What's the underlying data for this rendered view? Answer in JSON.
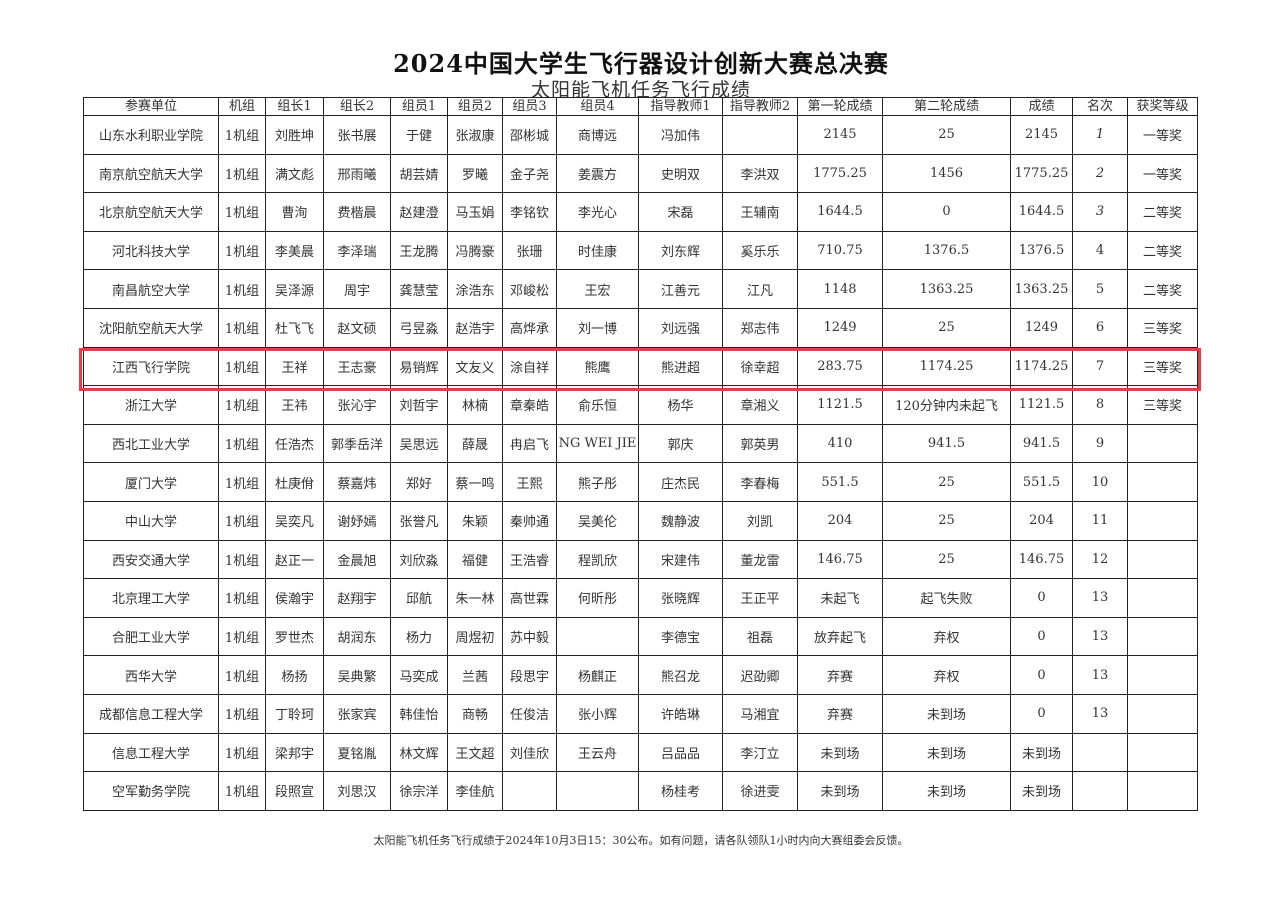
{
  "title": "2024中国大学生飞行器设计创新大赛总决赛",
  "subtitle": "太阳能飞机任务飞行成绩",
  "highlight_color": "#e0404a",
  "highlighted_team": "江西飞行学院",
  "columns": [
    "参赛单位",
    "机组",
    "组长1",
    "组长2",
    "组员1",
    "组员2",
    "组员3",
    "组员4",
    "指导教师1",
    "指导教师2",
    "第一轮成绩",
    "第二轮成绩",
    "成绩",
    "名次",
    "获奖等级"
  ],
  "rows": [
    [
      "山东水利职业学院",
      "1机组",
      "刘胜坤",
      "张书展",
      "于健",
      "张淑康",
      "邵彬城",
      "商博远",
      "冯加伟",
      "",
      "2145",
      "25",
      "2145",
      "1",
      "一等奖"
    ],
    [
      "南京航空航天大学",
      "1机组",
      "满文彪",
      "邢雨曦",
      "胡芸婧",
      "罗曦",
      "金子尧",
      "姜震方",
      "史明双",
      "李洪双",
      "1775.25",
      "1456",
      "1775.25",
      "2",
      "一等奖"
    ],
    [
      "北京航空航天大学",
      "1机组",
      "曹洵",
      "费楷晨",
      "赵建澄",
      "马玉娟",
      "李铭钦",
      "李光心",
      "宋磊",
      "王辅南",
      "1644.5",
      "0",
      "1644.5",
      "3",
      "二等奖"
    ],
    [
      "河北科技大学",
      "1机组",
      "李美晨",
      "李泽瑞",
      "王龙腾",
      "冯腾豪",
      "张珊",
      "时佳康",
      "刘东辉",
      "奚乐乐",
      "710.75",
      "1376.5",
      "1376.5",
      "4",
      "二等奖"
    ],
    [
      "南昌航空大学",
      "1机组",
      "吴泽源",
      "周宇",
      "龚慧莹",
      "涂浩东",
      "邓峻松",
      "王宏",
      "江善元",
      "江凡",
      "1148",
      "1363.25",
      "1363.25",
      "5",
      "二等奖"
    ],
    [
      "沈阳航空航天大学",
      "1机组",
      "杜飞飞",
      "赵文硕",
      "弓昱淼",
      "赵浩宇",
      "高烨承",
      "刘一博",
      "刘远强",
      "郑志伟",
      "1249",
      "25",
      "1249",
      "6",
      "三等奖"
    ],
    [
      "江西飞行学院",
      "1机组",
      "王祥",
      "王志豪",
      "易销辉",
      "文友义",
      "涂自祥",
      "熊鹰",
      "熊进超",
      "徐幸超",
      "283.75",
      "1174.25",
      "1174.25",
      "7",
      "三等奖"
    ],
    [
      "浙江大学",
      "1机组",
      "王祎",
      "张沁宇",
      "刘哲宇",
      "林楠",
      "章秦皓",
      "俞乐恒",
      "杨华",
      "章湘义",
      "1121.5",
      "120分钟内未起飞",
      "1121.5",
      "8",
      "三等奖"
    ],
    [
      "西北工业大学",
      "1机组",
      "任浩杰",
      "郭季岳洋",
      "吴思远",
      "薛晟",
      "冉启飞",
      "NG WEI JIE",
      "郭庆",
      "郭英男",
      "410",
      "941.5",
      "941.5",
      "9",
      ""
    ],
    [
      "厦门大学",
      "1机组",
      "杜庚佾",
      "蔡嘉炜",
      "郑好",
      "蔡一鸣",
      "王熙",
      "熊子彤",
      "庄杰民",
      "李春梅",
      "551.5",
      "25",
      "551.5",
      "10",
      ""
    ],
    [
      "中山大学",
      "1机组",
      "吴奕凡",
      "谢妤嫣",
      "张誉凡",
      "朱颖",
      "秦帅通",
      "吴美伦",
      "魏静波",
      "刘凯",
      "204",
      "25",
      "204",
      "11",
      ""
    ],
    [
      "西安交通大学",
      "1机组",
      "赵正一",
      "金晨旭",
      "刘欣淼",
      "福健",
      "王浩睿",
      "程凯欣",
      "宋建伟",
      "董龙雷",
      "146.75",
      "25",
      "146.75",
      "12",
      ""
    ],
    [
      "北京理工大学",
      "1机组",
      "侯瀚宇",
      "赵翔宇",
      "邱航",
      "朱一林",
      "高世霖",
      "何昕彤",
      "张晓辉",
      "王正平",
      "未起飞",
      "起飞失败",
      "0",
      "13",
      ""
    ],
    [
      "合肥工业大学",
      "1机组",
      "罗世杰",
      "胡润东",
      "杨力",
      "周煜初",
      "苏中毅",
      "",
      "李德宝",
      "祖磊",
      "放弃起飞",
      "弃权",
      "0",
      "13",
      ""
    ],
    [
      "西华大学",
      "1机组",
      "杨扬",
      "吴典繁",
      "马奕成",
      "兰茜",
      "段思宇",
      "杨麒正",
      "熊召龙",
      "迟劭卿",
      "弃赛",
      "弃权",
      "0",
      "13",
      ""
    ],
    [
      "成都信息工程大学",
      "1机组",
      "丁聆珂",
      "张家宾",
      "韩佳怡",
      "商畅",
      "任俊洁",
      "张小辉",
      "许皓琳",
      "马湘宜",
      "弃赛",
      "未到场",
      "0",
      "13",
      ""
    ],
    [
      "信息工程大学",
      "1机组",
      "梁邦宇",
      "夏铭胤",
      "林文辉",
      "王文超",
      "刘佳欣",
      "王云舟",
      "吕品品",
      "李汀立",
      "未到场",
      "未到场",
      "未到场",
      "",
      ""
    ],
    [
      "空军勤务学院",
      "1机组",
      "段照宣",
      "刘思汉",
      "徐宗洋",
      "李佳航",
      "",
      "",
      "杨桂考",
      "徐进雯",
      "未到场",
      "未到场",
      "未到场",
      "",
      ""
    ]
  ],
  "footer": "太阳能飞机任务飞行成绩于2024年10月3日15：30公布。如有问题，请各队领队1小时内向大赛组委会反馈。"
}
